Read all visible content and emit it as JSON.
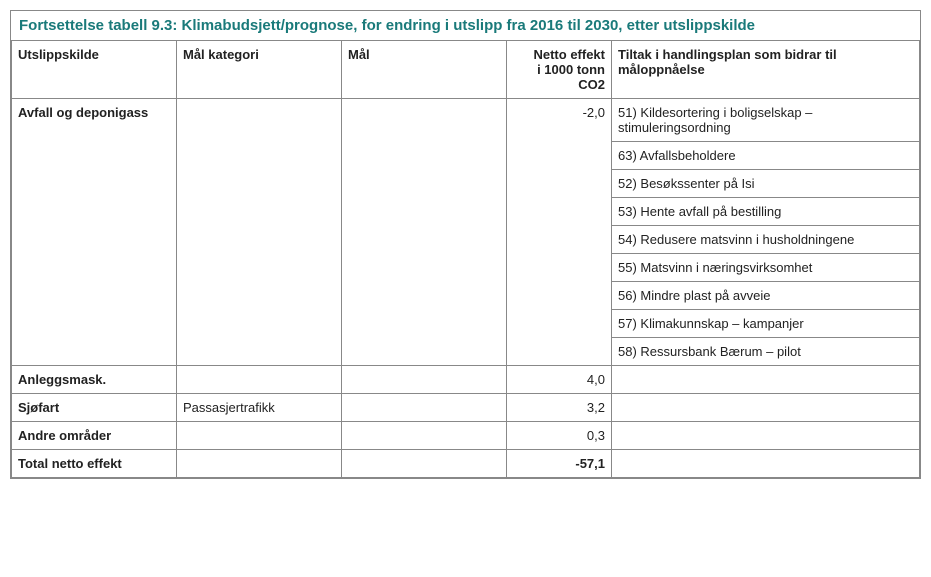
{
  "title": "Fortsettelse tabell 9.3: Klimabudsjett/prognose, for endring i utslipp fra 2016 til 2030, etter utslippskilde",
  "title_color": "#1a7a7a",
  "border_color": "#888888",
  "font_family": "Arial, Helvetica, sans-serif",
  "columns": {
    "c1": "Utslippskilde",
    "c2": "Mål kategori",
    "c3": "Mål",
    "c4_line1": "Netto effekt",
    "c4_line2": "i 1000 tonn",
    "c4_line3": "CO2",
    "c5_line1": "Tiltak i handlingsplan som bidrar til",
    "c5_line2": "måloppnåelse"
  },
  "rows": {
    "avfall": {
      "label": "Avfall og deponigass",
      "value": "-2,0",
      "tiltak": {
        "t0": "51) Kildesortering i boligselskap – stimuleringsordning",
        "t1": "63) Avfallsbeholdere",
        "t2": "52) Besøkssenter på Isi",
        "t3": "53) Hente avfall på bestilling",
        "t4": "54) Redusere matsvinn i husholdningene",
        "t5": "55) Matsvinn i næringsvirksomhet",
        "t6": "56) Mindre plast på avveie",
        "t7": "57) Klimakunnskap – kampanjer",
        "t8": "58) Ressursbank Bærum – pilot"
      }
    },
    "anlegg": {
      "label": "Anleggsmask.",
      "kategori": "",
      "mal": "",
      "value": "4,0",
      "tiltak": ""
    },
    "sjofart": {
      "label": "Sjøfart",
      "kategori": "Passasjertrafikk",
      "mal": "",
      "value": "3,2",
      "tiltak": ""
    },
    "andre": {
      "label": "Andre områder",
      "kategori": "",
      "mal": "",
      "value": "0,3",
      "tiltak": ""
    },
    "total": {
      "label": "Total netto effekt",
      "kategori": "",
      "mal": "",
      "value": "-57,1",
      "tiltak": ""
    }
  }
}
